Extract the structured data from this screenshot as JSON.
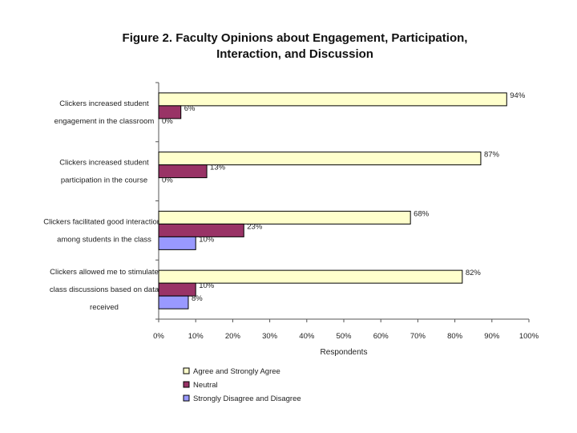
{
  "chart_data": {
    "type": "bar",
    "orientation": "horizontal",
    "title_lines": [
      "Figure 2. Faculty Opinions about Engagement, Participation,",
      "Interaction, and Discussion"
    ],
    "categories": [
      [
        "Clickers increased student",
        "engagement in the classroom"
      ],
      [
        "Clickers increased student",
        "participation in the course"
      ],
      [
        "Clickers facilitated good interactions",
        "among students in the class"
      ],
      [
        "Clickers allowed me to stimulate",
        "class discussions based on data",
        "received"
      ]
    ],
    "series": [
      {
        "name": "Agree and Strongly Agree",
        "color": "#ffffcc",
        "values": [
          94,
          87,
          68,
          82
        ]
      },
      {
        "name": "Neutral",
        "color": "#993366",
        "values": [
          6,
          13,
          23,
          10
        ]
      },
      {
        "name": "Strongly Disagree and Disagree",
        "color": "#9999ff",
        "values": [
          0,
          0,
          10,
          8
        ]
      }
    ],
    "xlim": [
      0,
      100
    ],
    "xticks": [
      "0%",
      "10%",
      "20%",
      "30%",
      "40%",
      "50%",
      "60%",
      "70%",
      "80%",
      "90%",
      "100%"
    ],
    "xlabel": "Respondents",
    "value_suffix": "%",
    "legend_position": "bottom-left"
  }
}
